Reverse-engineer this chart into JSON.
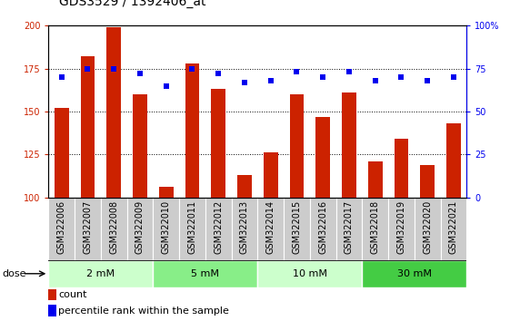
{
  "title": "GDS3529 / 1392406_at",
  "samples": [
    "GSM322006",
    "GSM322007",
    "GSM322008",
    "GSM322009",
    "GSM322010",
    "GSM322011",
    "GSM322012",
    "GSM322013",
    "GSM322014",
    "GSM322015",
    "GSM322016",
    "GSM322017",
    "GSM322018",
    "GSM322019",
    "GSM322020",
    "GSM322021"
  ],
  "counts": [
    152,
    182,
    199,
    160,
    106,
    178,
    163,
    113,
    126,
    160,
    147,
    161,
    121,
    134,
    119,
    143
  ],
  "percentiles": [
    70,
    75,
    75,
    72,
    65,
    75,
    72,
    67,
    68,
    73,
    70,
    73,
    68,
    70,
    68,
    70
  ],
  "bar_color": "#cc2200",
  "dot_color": "#0000ee",
  "ylim_left": [
    100,
    200
  ],
  "ylim_right": [
    0,
    100
  ],
  "yticks_left": [
    100,
    125,
    150,
    175,
    200
  ],
  "yticks_right": [
    0,
    25,
    50,
    75,
    100
  ],
  "dose_groups": [
    {
      "label": "2 mM",
      "start": 0,
      "end": 4,
      "color": "#ccffcc"
    },
    {
      "label": "5 mM",
      "start": 4,
      "end": 8,
      "color": "#88ee88"
    },
    {
      "label": "10 mM",
      "start": 8,
      "end": 12,
      "color": "#ccffcc"
    },
    {
      "label": "30 mM",
      "start": 12,
      "end": 16,
      "color": "#44cc44"
    }
  ],
  "xlabel_area_color": "#cccccc",
  "legend_count_label": "count",
  "legend_percentile_label": "percentile rank within the sample",
  "dose_label": "dose",
  "title_fontsize": 10,
  "tick_fontsize": 7,
  "axis_label_fontsize": 7,
  "bar_width": 0.55
}
